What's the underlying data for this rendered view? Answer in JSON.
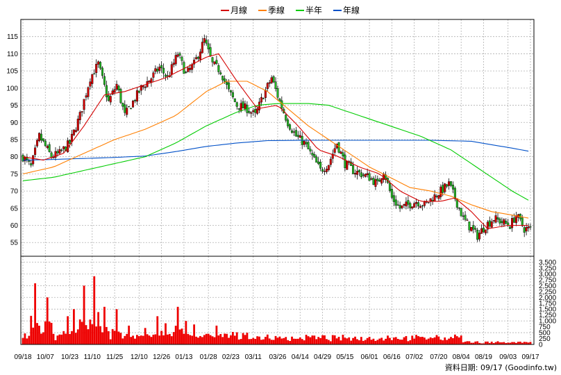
{
  "chart_data": {
    "type": "candlestick",
    "legend": [
      {
        "name": "月線",
        "color": "#d40000"
      },
      {
        "name": "季線",
        "color": "#ff7f00"
      },
      {
        "name": "半年",
        "color": "#00cc00"
      },
      {
        "name": "年線",
        "color": "#0050c8"
      }
    ],
    "price_axis": {
      "ylim": [
        51,
        120
      ],
      "ticks": [
        55,
        60,
        65,
        70,
        75,
        80,
        85,
        90,
        95,
        100,
        105,
        110,
        115
      ]
    },
    "volume_axis": {
      "ylim": [
        0,
        3750
      ],
      "ticks": [
        "0",
        "250",
        "500",
        "750",
        "1,000",
        "1,250",
        "1,500",
        "1,750",
        "2,000",
        "2,250",
        "2,500",
        "2,750",
        "3,000",
        "3,250",
        "3,500"
      ]
    },
    "x_labels": [
      "09/18",
      "10/07",
      "10/23",
      "11/10",
      "11/25",
      "12/10",
      "12/26",
      "01/13",
      "01/28",
      "02/23",
      "03/11",
      "03/26",
      "04/14",
      "04/29",
      "05/15",
      "06/01",
      "06/16",
      "07/02",
      "07/20",
      "08/04",
      "08/19",
      "09/03",
      "09/17"
    ],
    "footer": "資料日期: 09/17  (Goodinfo.tw)",
    "colors": {
      "up": "#d40000",
      "down": "#22b422",
      "volume": "#ee0000",
      "grid": "#b0b0b0"
    },
    "n_days": 250,
    "close_keypoints": [
      [
        0,
        80
      ],
      [
        4,
        77
      ],
      [
        8,
        86
      ],
      [
        14,
        80
      ],
      [
        18,
        81
      ],
      [
        23,
        84
      ],
      [
        28,
        92
      ],
      [
        33,
        103
      ],
      [
        37,
        107
      ],
      [
        42,
        96
      ],
      [
        46,
        101
      ],
      [
        50,
        92
      ],
      [
        54,
        96
      ],
      [
        58,
        100
      ],
      [
        63,
        103
      ],
      [
        67,
        106
      ],
      [
        71,
        103
      ],
      [
        76,
        110
      ],
      [
        80,
        104
      ],
      [
        84,
        107
      ],
      [
        89,
        114
      ],
      [
        93,
        107
      ],
      [
        97,
        105
      ],
      [
        101,
        99
      ],
      [
        105,
        95
      ],
      [
        110,
        94
      ],
      [
        114,
        92
      ],
      [
        118,
        98
      ],
      [
        122,
        103
      ],
      [
        126,
        96
      ],
      [
        130,
        90
      ],
      [
        134,
        86
      ],
      [
        138,
        84
      ],
      [
        142,
        80
      ],
      [
        146,
        76
      ],
      [
        150,
        78
      ],
      [
        154,
        84
      ],
      [
        158,
        78
      ],
      [
        162,
        76
      ],
      [
        166,
        75
      ],
      [
        170,
        74
      ],
      [
        174,
        72
      ],
      [
        177,
        76
      ],
      [
        181,
        68
      ],
      [
        185,
        65
      ],
      [
        189,
        66
      ],
      [
        193,
        67
      ],
      [
        197,
        66
      ],
      [
        201,
        68
      ],
      [
        205,
        70
      ],
      [
        209,
        72
      ],
      [
        212,
        68
      ],
      [
        216,
        62
      ],
      [
        220,
        59
      ],
      [
        223,
        57
      ],
      [
        227,
        60
      ],
      [
        231,
        62
      ],
      [
        235,
        61
      ],
      [
        239,
        60
      ],
      [
        242,
        63
      ],
      [
        246,
        59
      ],
      [
        249,
        59
      ]
    ],
    "ma_month": [
      [
        0,
        80
      ],
      [
        10,
        79
      ],
      [
        20,
        81
      ],
      [
        30,
        89
      ],
      [
        40,
        98
      ],
      [
        50,
        99
      ],
      [
        60,
        101
      ],
      [
        70,
        103
      ],
      [
        80,
        106
      ],
      [
        90,
        109
      ],
      [
        96,
        110
      ],
      [
        105,
        102
      ],
      [
        115,
        94
      ],
      [
        125,
        95
      ],
      [
        135,
        89
      ],
      [
        145,
        82
      ],
      [
        155,
        80
      ],
      [
        165,
        77
      ],
      [
        175,
        75
      ],
      [
        185,
        70
      ],
      [
        195,
        67
      ],
      [
        205,
        67
      ],
      [
        212,
        68
      ],
      [
        220,
        64
      ],
      [
        228,
        59
      ],
      [
        238,
        60
      ],
      [
        249,
        60
      ]
    ],
    "ma_quarter": [
      [
        0,
        75
      ],
      [
        15,
        77
      ],
      [
        30,
        81
      ],
      [
        45,
        85
      ],
      [
        60,
        88
      ],
      [
        75,
        92
      ],
      [
        90,
        99
      ],
      [
        100,
        102
      ],
      [
        110,
        102
      ],
      [
        120,
        99
      ],
      [
        130,
        94
      ],
      [
        140,
        89
      ],
      [
        150,
        85
      ],
      [
        160,
        81
      ],
      [
        170,
        77
      ],
      [
        180,
        74
      ],
      [
        190,
        71
      ],
      [
        200,
        70
      ],
      [
        210,
        68.5
      ],
      [
        220,
        66
      ],
      [
        230,
        64
      ],
      [
        240,
        63
      ],
      [
        249,
        62
      ]
    ],
    "ma_half": [
      [
        0,
        73
      ],
      [
        15,
        74
      ],
      [
        30,
        76
      ],
      [
        45,
        78
      ],
      [
        60,
        80
      ],
      [
        75,
        84
      ],
      [
        90,
        89
      ],
      [
        105,
        93
      ],
      [
        115,
        95
      ],
      [
        125,
        95.5
      ],
      [
        140,
        95.5
      ],
      [
        150,
        95
      ],
      [
        165,
        92
      ],
      [
        180,
        89
      ],
      [
        195,
        86
      ],
      [
        210,
        82
      ],
      [
        225,
        76
      ],
      [
        240,
        70
      ],
      [
        249,
        67
      ]
    ],
    "ma_year": [
      [
        0,
        79
      ],
      [
        15,
        79.2
      ],
      [
        30,
        79.5
      ],
      [
        45,
        79.8
      ],
      [
        60,
        80.2
      ],
      [
        75,
        81.5
      ],
      [
        90,
        83
      ],
      [
        105,
        84
      ],
      [
        120,
        84.7
      ],
      [
        140,
        84.8
      ],
      [
        160,
        84.8
      ],
      [
        180,
        84.8
      ],
      [
        200,
        84.8
      ],
      [
        220,
        84.5
      ],
      [
        240,
        82.5
      ],
      [
        249,
        81.5
      ]
    ],
    "volume_spikes": [
      [
        6,
        2600
      ],
      [
        12,
        2000
      ],
      [
        22,
        1200
      ],
      [
        25,
        1500
      ],
      [
        30,
        2500
      ],
      [
        35,
        2900
      ],
      [
        40,
        1600
      ],
      [
        46,
        1500
      ],
      [
        52,
        800
      ],
      [
        60,
        700
      ],
      [
        66,
        1200
      ],
      [
        70,
        900
      ],
      [
        76,
        1600
      ],
      [
        80,
        1000
      ],
      [
        84,
        850
      ],
      [
        95,
        800
      ],
      [
        100,
        450
      ],
      [
        110,
        500
      ],
      [
        120,
        420
      ],
      [
        140,
        350
      ],
      [
        160,
        300
      ],
      [
        180,
        280
      ],
      [
        200,
        300
      ],
      [
        212,
        420
      ],
      [
        225,
        250
      ],
      [
        240,
        150
      ]
    ]
  }
}
